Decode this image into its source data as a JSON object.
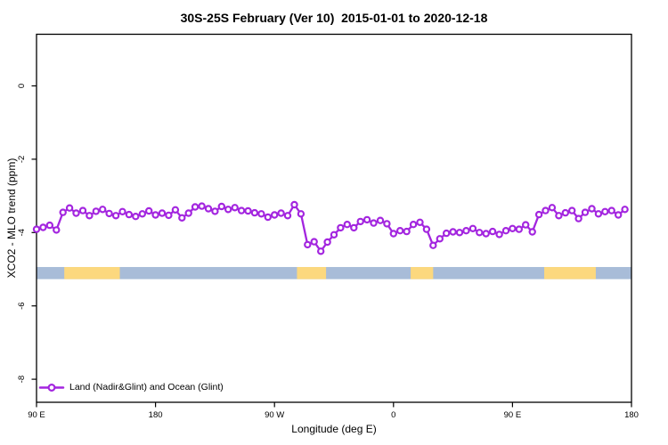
{
  "title": "30S-25S February (Ver 10)  2015-01-01 to 2020-12-18",
  "legend": {
    "label": "Land (Nadir&Glint) and Ocean (Glint)"
  },
  "colors": {
    "series_purple": "#a325df",
    "band_blue": "#a8bcd8",
    "band_yellow": "#fcd87e",
    "axis_black": "#000000",
    "background": "#ffffff"
  },
  "chart_data": {
    "type": "line",
    "title": "30S-25S February (Ver 10)  2015-01-01 to 2020-12-18",
    "xlabel": "Longitude (deg E)",
    "ylabel": "XCO2 - MLO trend (ppm)",
    "xlim": [
      90,
      540
    ],
    "ylim": [
      -8.6,
      1.4
    ],
    "grid": false,
    "x_ticks": [
      {
        "value": 90,
        "label": "90 E"
      },
      {
        "value": 180,
        "label": "180"
      },
      {
        "value": 270,
        "label": "90 W"
      },
      {
        "value": 360,
        "label": "0"
      },
      {
        "value": 450,
        "label": "90 E"
      },
      {
        "value": 540,
        "label": "180"
      }
    ],
    "y_ticks": [
      {
        "value": 0,
        "label": "0"
      },
      {
        "value": -2,
        "label": "-2"
      },
      {
        "value": -4,
        "label": "-4"
      },
      {
        "value": -6,
        "label": "-6"
      },
      {
        "value": -8,
        "label": "-8"
      }
    ],
    "legend": {
      "label": "Land (Nadir&Glint) and Ocean (Glint)",
      "position": "bottom-left",
      "marker": "open-circle-on-line"
    },
    "series": [
      {
        "name": "Land (Nadir&Glint) and Ocean (Glint)",
        "color": "#a325df",
        "marker": "open-circle",
        "x": [
          90,
          95,
          100,
          105,
          110,
          115,
          120,
          125,
          130,
          135,
          140,
          145,
          150,
          155,
          160,
          165,
          170,
          175,
          180,
          185,
          190,
          195,
          200,
          205,
          210,
          215,
          220,
          225,
          230,
          235,
          240,
          245,
          250,
          255,
          260,
          265,
          270,
          275,
          280,
          285,
          290,
          295,
          300,
          305,
          310,
          315,
          320,
          325,
          330,
          335,
          340,
          345,
          350,
          355,
          360,
          365,
          370,
          375,
          380,
          385,
          390,
          395,
          400,
          405,
          410,
          415,
          420,
          425,
          430,
          435,
          440,
          445,
          450,
          455,
          460,
          465,
          470,
          475,
          480,
          485,
          490,
          495,
          500,
          505,
          510,
          515,
          520,
          525,
          530,
          535
        ],
        "y": [
          -3.91,
          -3.86,
          -3.8,
          -3.93,
          -3.45,
          -3.33,
          -3.47,
          -3.4,
          -3.54,
          -3.42,
          -3.37,
          -3.48,
          -3.54,
          -3.43,
          -3.51,
          -3.56,
          -3.49,
          -3.41,
          -3.52,
          -3.47,
          -3.53,
          -3.38,
          -3.6,
          -3.47,
          -3.3,
          -3.28,
          -3.35,
          -3.42,
          -3.29,
          -3.37,
          -3.32,
          -3.4,
          -3.41,
          -3.46,
          -3.49,
          -3.58,
          -3.52,
          -3.47,
          -3.54,
          -3.24,
          -3.49,
          -4.33,
          -4.25,
          -4.51,
          -4.26,
          -4.06,
          -3.87,
          -3.78,
          -3.87,
          -3.7,
          -3.65,
          -3.74,
          -3.67,
          -3.76,
          -4.03,
          -3.95,
          -3.97,
          -3.78,
          -3.72,
          -3.91,
          -4.35,
          -4.17,
          -4.02,
          -3.98,
          -4.0,
          -3.95,
          -3.89,
          -4.0,
          -4.03,
          -3.97,
          -4.05,
          -3.95,
          -3.89,
          -3.91,
          -3.79,
          -3.98,
          -3.51,
          -3.4,
          -3.32,
          -3.54,
          -3.46,
          -3.4,
          -3.62,
          -3.45,
          -3.35,
          -3.49,
          -3.43,
          -3.4,
          -3.52,
          -3.37
        ]
      }
    ],
    "qc_band": {
      "y_range": [
        -4.94,
        -5.27
      ],
      "base": {
        "color": "#a8bcd8",
        "range": [
          90,
          540
        ]
      },
      "highlights": {
        "color": "#fcd87e",
        "ranges": [
          [
            111,
            153
          ],
          [
            287,
            309
          ],
          [
            373,
            390
          ],
          [
            474,
            513
          ]
        ]
      }
    }
  }
}
